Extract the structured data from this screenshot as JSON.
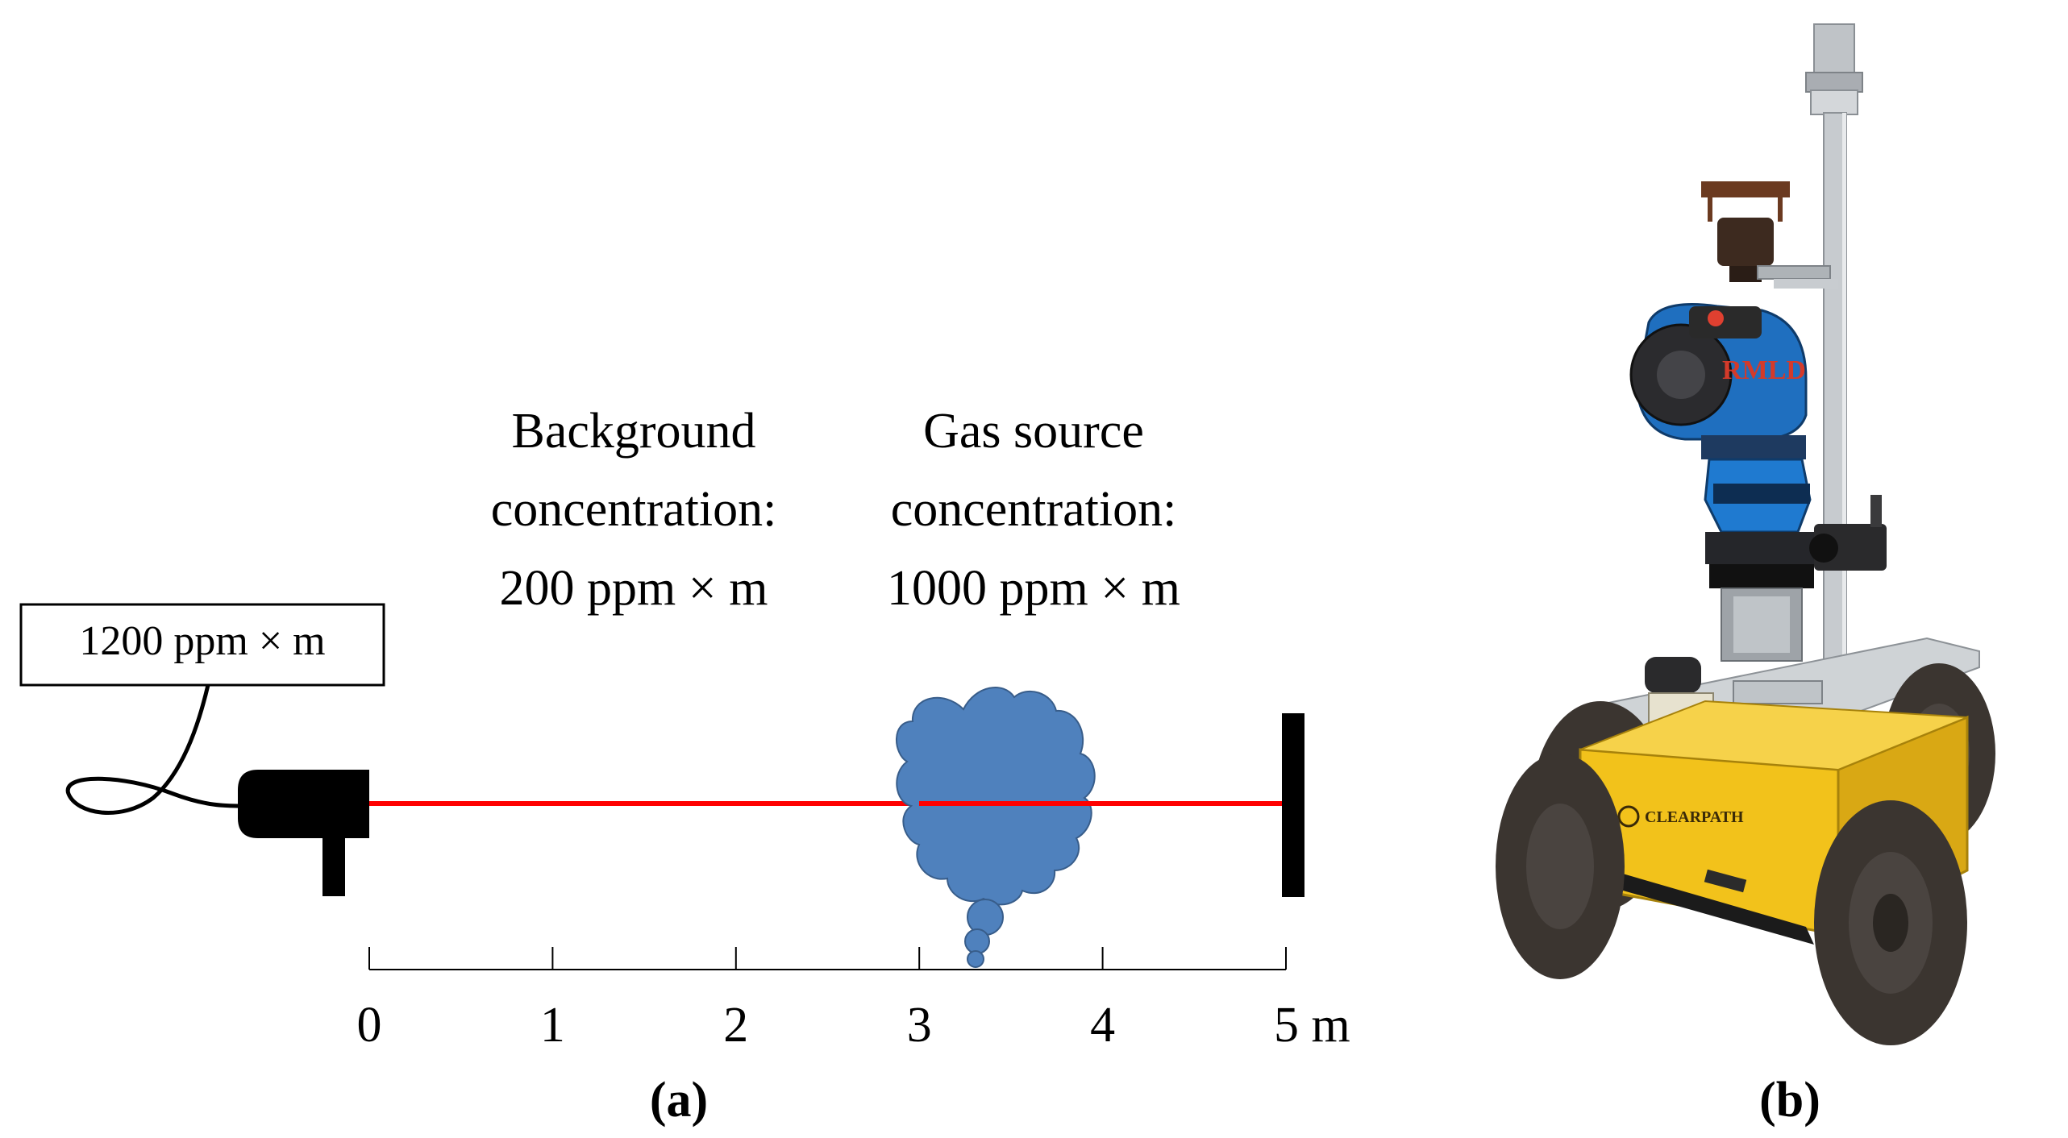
{
  "panel_a": {
    "caption": "(a)",
    "detector_reading": "1200 ppm × m",
    "background_label": {
      "line1": "Background",
      "line2": "concentration:",
      "line3": "200 ppm × m"
    },
    "source_label": {
      "line1": "Gas source",
      "line2": "concentration:",
      "line3": "1000 ppm × m"
    },
    "scale": {
      "ticks": [
        "0",
        "1",
        "2",
        "3",
        "4",
        "5 m"
      ]
    },
    "colors": {
      "laser_beam": "#ff0000",
      "gas_cloud": "#4f81bd",
      "gas_cloud_outline": "#385d8a",
      "device": "#000000"
    }
  },
  "panel_b": {
    "caption": "(b)",
    "robot_labels": {
      "brand": "CLEARPATH",
      "sensor": "RMLD"
    },
    "colors": {
      "chassis": "#f2c21b",
      "tire": "#3b3530",
      "frame": "#b9bec4",
      "sensor_blue": "#1f6fbf"
    }
  }
}
